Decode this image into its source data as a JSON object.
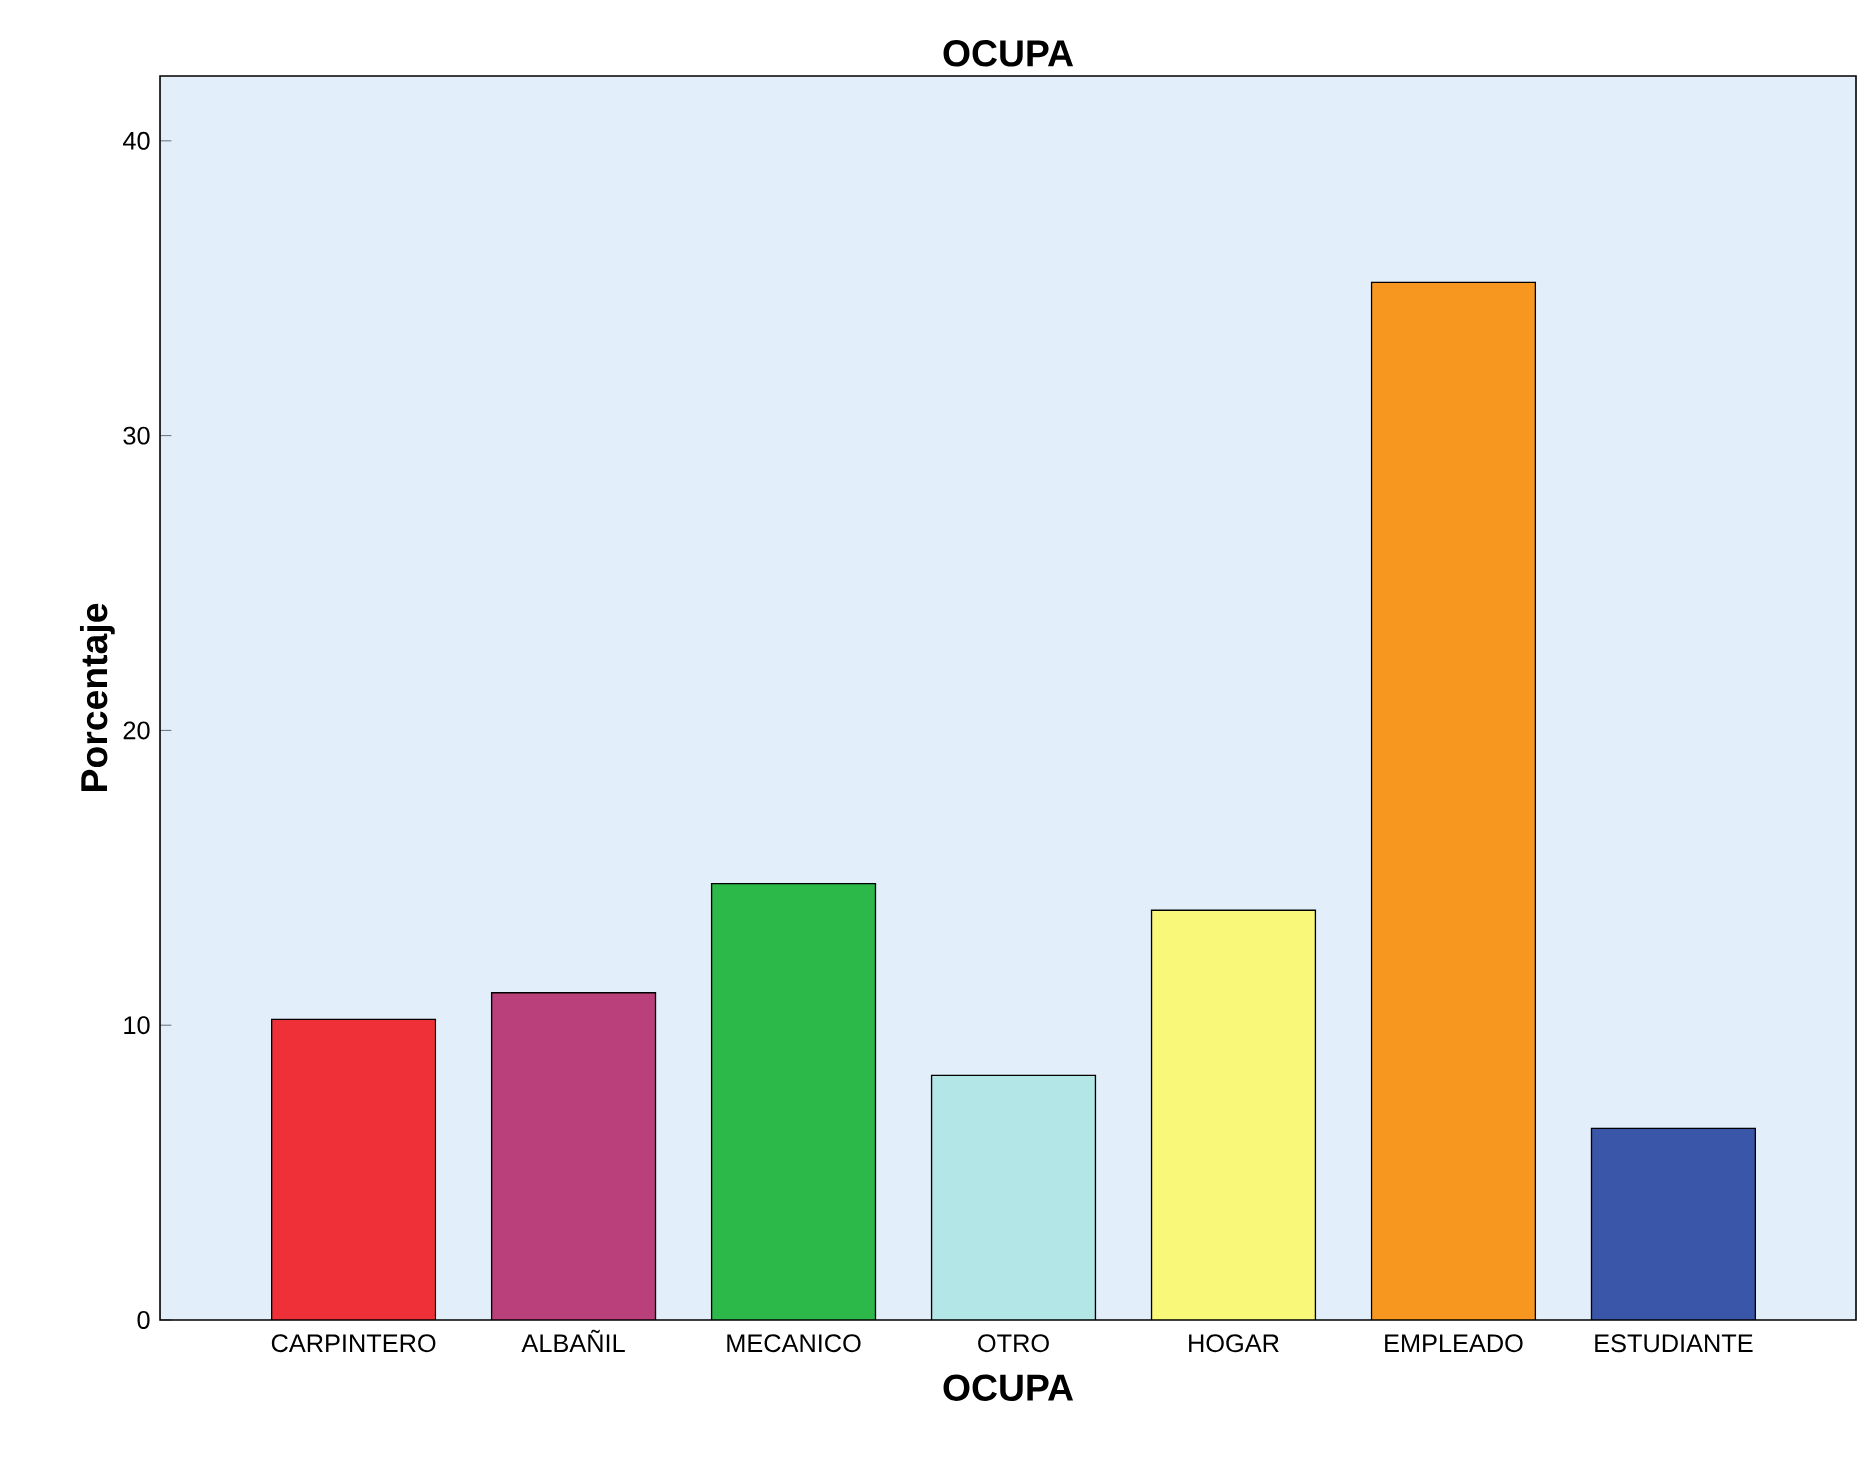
{
  "chart_data": {
    "type": "bar",
    "title": "OCUPA",
    "xlabel": "OCUPA",
    "ylabel": "Porcentaje",
    "categories": [
      "CARPINTERO",
      "ALBAÑIL",
      "MECANICO",
      "OTRO",
      "HOGAR",
      "EMPLEADO",
      "ESTUDIANTE"
    ],
    "values": [
      10.2,
      11.1,
      14.8,
      8.3,
      13.9,
      35.2,
      6.5
    ],
    "colors": [
      "#ef3038",
      "#b9407b",
      "#2db84a",
      "#b3e6e6",
      "#f9f878",
      "#f7971f",
      "#3a56a8"
    ],
    "ylim": [
      0,
      42.2
    ],
    "yticks": [
      0,
      10,
      20,
      30,
      40
    ]
  }
}
